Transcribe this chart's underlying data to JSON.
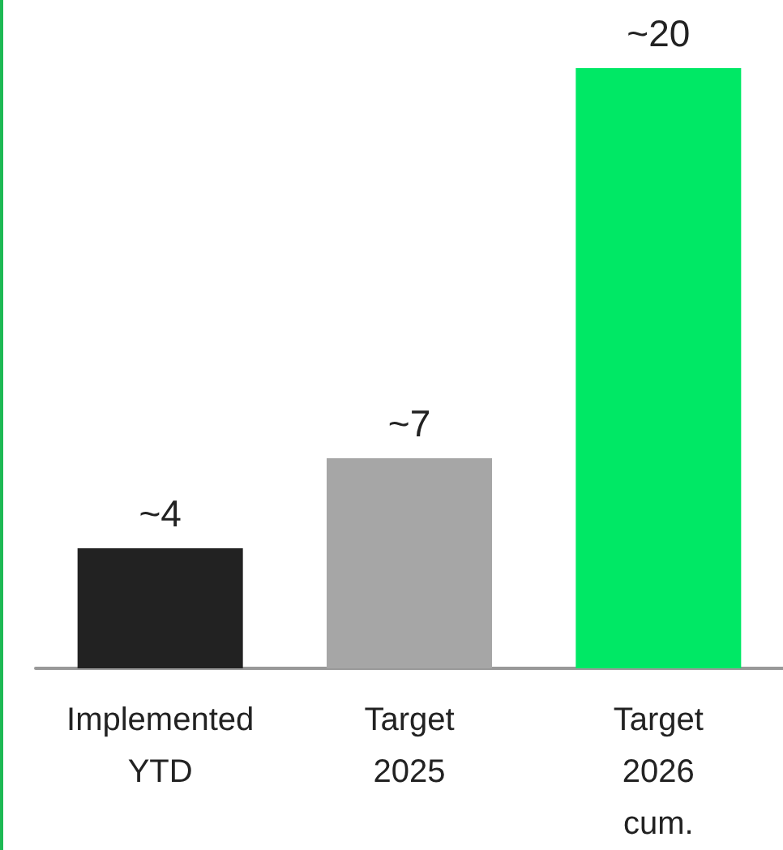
{
  "chart_data": {
    "type": "bar",
    "categories": [
      "Implemented\nYTD",
      "Target\n2025",
      "Target\n2026\ncum."
    ],
    "values": [
      4,
      7,
      20
    ],
    "colors": [
      "#222222",
      "#a6a6a6",
      "#00e865"
    ],
    "value_labels": [
      "~4",
      "~7",
      "~20"
    ]
  }
}
